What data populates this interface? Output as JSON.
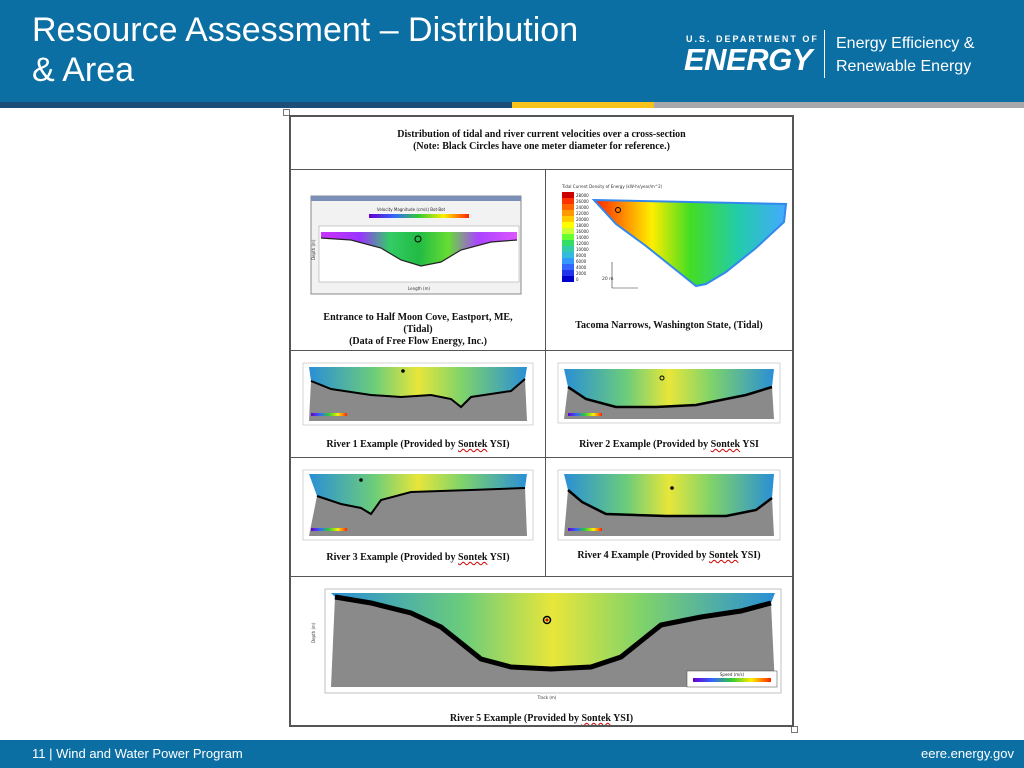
{
  "slide": {
    "title": "Resource Assessment – Distribution & Area",
    "title_line1": "Resource Assessment – Distribution",
    "title_line2": "& Area",
    "logo": {
      "small": "U.S. DEPARTMENT OF",
      "big": "ENERGY",
      "office_line1": "Energy Efficiency &",
      "office_line2": "Renewable Energy"
    },
    "footer": {
      "left": "11 | Wind and Water Power Program",
      "right": "eere.energy.gov"
    },
    "colors": {
      "header_blue": "#0c6fa3",
      "stripe_dark": "#1d4e78",
      "stripe_yellow": "#f6c21b",
      "stripe_grey": "#a6a8ab"
    }
  },
  "figure": {
    "header_line1": "Distribution of tidal and river current velocities over a cross-section",
    "header_line2": "(Note: Black Circles have one meter diameter for reference.)",
    "panels": {
      "half_moon": {
        "caption_line1": "Entrance to Half Moon Cove, Eastport, ME,",
        "caption_line2": "(Tidal)",
        "caption_line3": "(Data of Free Flow Energy, Inc.)",
        "plot_title": "Velocity Magnitude (cm/s) Bot-Bot",
        "ylabel": "Depth (m)",
        "xlabel": "Length (m)"
      },
      "tacoma": {
        "caption": "Tacoma Narrows, Washington State, (Tidal)",
        "legend_title": "Tidal Current Density of Energy (kW-hr/year/m^2)",
        "legend_values": [
          "28000",
          "26000",
          "24000",
          "22000",
          "20000",
          "18000",
          "16000",
          "14000",
          "12000",
          "10000",
          "8000",
          "6000",
          "4000",
          "2000",
          "0"
        ],
        "scale_label": "20 m"
      },
      "river1": {
        "caption_pre": "River 1 Example (Provided by ",
        "caption_u": "Sontek",
        "caption_post": " YSI)"
      },
      "river2": {
        "caption_pre": "River 2 Example (Provided by ",
        "caption_u": "Sontek",
        "caption_post": " YSI"
      },
      "river3": {
        "caption_pre": "River 3 Example (Provided by ",
        "caption_u": "Sontek",
        "caption_post": " YSI)"
      },
      "river4": {
        "caption_pre": "River 4 Example (Provided by ",
        "caption_u": "Sontek",
        "caption_post": " YSI)"
      },
      "river5": {
        "caption_pre": "River 5 Example (Provided by ",
        "caption_u": "Sontek",
        "caption_post": " YSI)",
        "legend_title": "Speed (m/s)",
        "ylabel": "Depth (m)",
        "xlabel": "Track (m)"
      }
    }
  }
}
